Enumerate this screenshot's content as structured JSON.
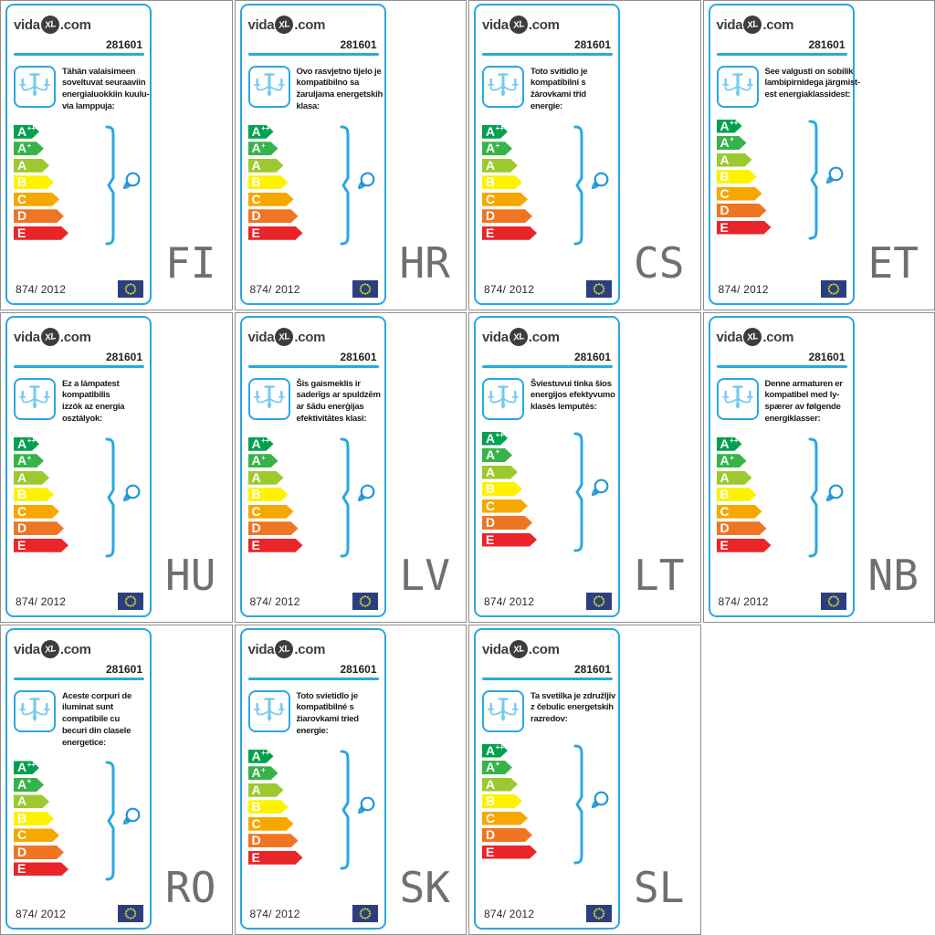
{
  "colors": {
    "accent_blue": "#29a8e0",
    "icon_light_blue": "#74cbee",
    "grid_line_gray": "#8f8f8f",
    "language_code_gray": "#6f6f6f",
    "text_dark": "#1a1a1a",
    "eu_flag_background": "#2b3f80",
    "eu_flag_stars": "#d7d523"
  },
  "card_common": {
    "brand": {
      "prefix": "vida",
      "xl": "XL",
      "suffix": ".com"
    },
    "product_number": "281601",
    "regulation": "874/ 2012",
    "energy_classes": [
      {
        "name": "A++",
        "label": "A",
        "sup": "++",
        "color": "#00a14e"
      },
      {
        "name": "A+",
        "label": "A",
        "sup": "+",
        "color": "#37b34a"
      },
      {
        "name": "A",
        "label": "A",
        "sup": "",
        "color": "#9cc92f"
      },
      {
        "name": "B",
        "label": "B",
        "sup": "",
        "color": "#fef200"
      },
      {
        "name": "C",
        "label": "C",
        "sup": "",
        "color": "#f6a800"
      },
      {
        "name": "D",
        "label": "D",
        "sup": "",
        "color": "#ee7623"
      },
      {
        "name": "E",
        "label": "E",
        "sup": "",
        "color": "#e9252a"
      }
    ]
  },
  "labels": [
    {
      "code": "FI",
      "lines": [
        "Tähän valaisimeen",
        "soveltuvat seuraaviin",
        "energialuokkiin kuulu-",
        "via lamppuja:"
      ]
    },
    {
      "code": "HR",
      "lines": [
        "Ovo rasvjetno tijelo je",
        "kompatibilno sa",
        "žaruljama energetskih",
        "klasa:"
      ]
    },
    {
      "code": "CS",
      "lines": [
        "Toto svítidlo je",
        "kompatibilní s",
        "žárovkami tříd",
        "energie:"
      ]
    },
    {
      "code": "ET",
      "lines": [
        "See valgusti on sobilik",
        "lambipirnidega järgmist-",
        "est energiaklassidest:"
      ]
    },
    {
      "code": "HU",
      "lines": [
        "Ez a lámpatest",
        "kompatibilis",
        "izzók az energia",
        "osztályok:"
      ]
    },
    {
      "code": "LV",
      "lines": [
        "Šis gaismeklis ir",
        "saderīgs ar spuldzēm",
        "ar šādu enerģijas",
        "efektivitātes klasi:"
      ]
    },
    {
      "code": "LT",
      "lines": [
        "Šviestuvui tinka šios",
        "energijos efektyvumo",
        "klasės lemputės:"
      ]
    },
    {
      "code": "NB",
      "lines": [
        "Denne armaturen er",
        "kompatibel med ly-",
        "spærer av følgende",
        "energiklasser:"
      ]
    },
    {
      "code": "RO",
      "lines": [
        "Aceste corpuri de",
        "iluminat sunt",
        "compatibile cu",
        "becuri din clasele",
        "energetice:"
      ]
    },
    {
      "code": "SK",
      "lines": [
        "Toto svietidlo je",
        "kompatibilné s",
        "žiarovkami tried",
        "energie:"
      ]
    },
    {
      "code": "SL",
      "lines": [
        "Ta svetilka je združljiv",
        "z čebulic energetskih",
        "razredov:"
      ]
    }
  ]
}
